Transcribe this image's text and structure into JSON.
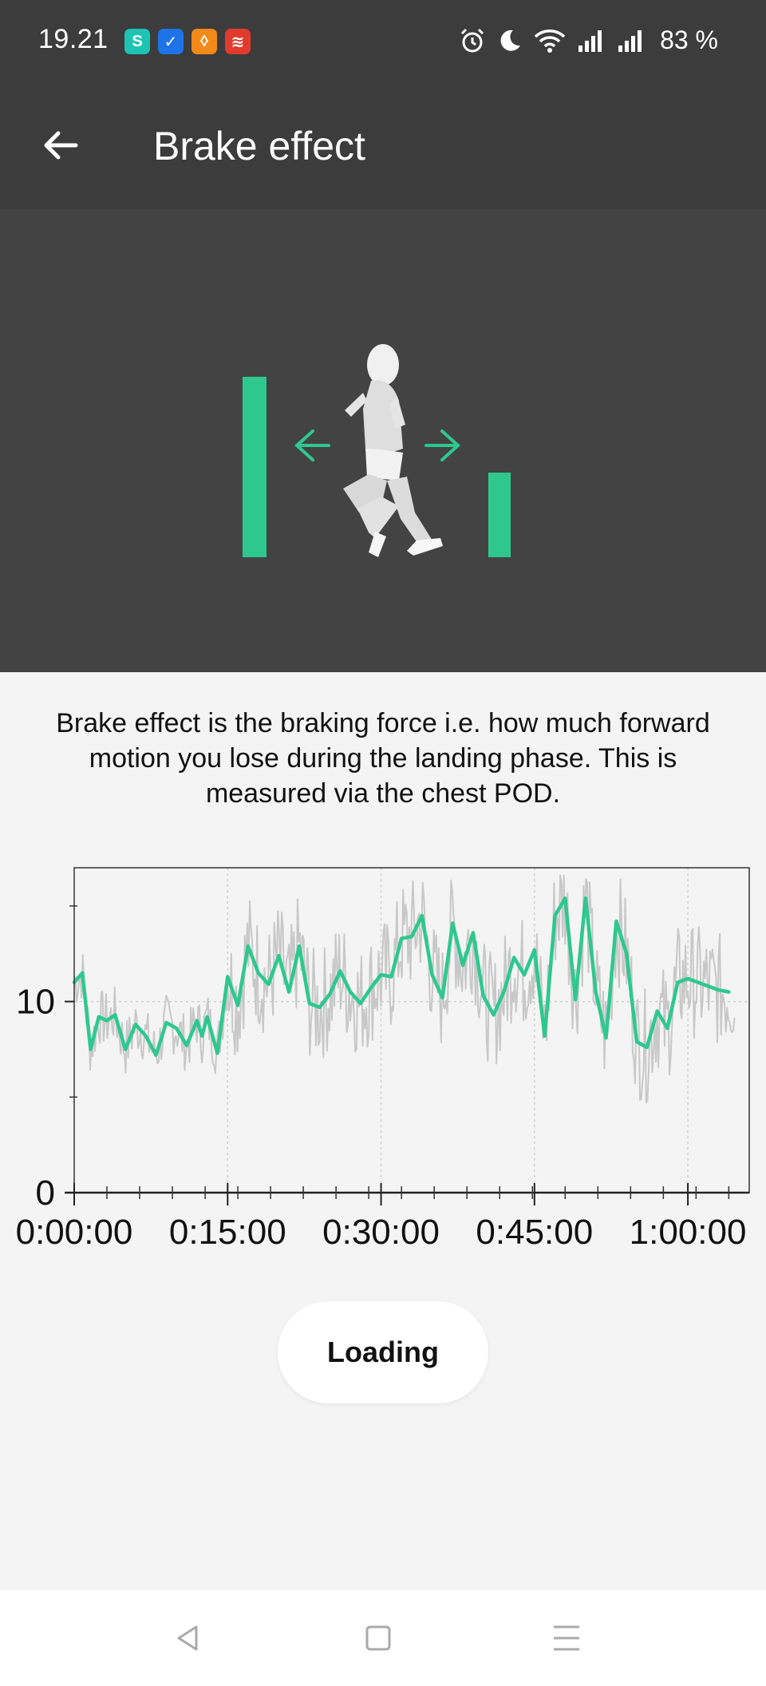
{
  "status_bar": {
    "time": "19.21",
    "battery": "83 %",
    "notification_icons": [
      "surfshark-icon",
      "tasks-icon",
      "shield-icon",
      "todoist-icon"
    ],
    "system_icons": [
      "alarm-icon",
      "moon-icon",
      "wifi-icon",
      "signal-icon",
      "signal-icon"
    ]
  },
  "app_bar": {
    "title": "Brake effect",
    "back_icon": "arrow-left-icon"
  },
  "colors": {
    "accent": "#2ec88f",
    "dark_bg": "#3c3c3c",
    "hero_bg": "#434343",
    "raw_series": "#c8c8c8"
  },
  "description": "Brake effect is the braking force i.e. how much forward motion you lose during the landing phase. This is measured via the chest POD.",
  "chart_data": {
    "type": "line",
    "x_unit": "minutes",
    "xlim": [
      0,
      66
    ],
    "ylim": [
      0,
      17
    ],
    "x_ticks": [
      {
        "value": 0,
        "label": "0:00:00"
      },
      {
        "value": 15,
        "label": "0:15:00"
      },
      {
        "value": 30,
        "label": "0:30:00"
      },
      {
        "value": 45,
        "label": "0:45:00"
      },
      {
        "value": 60,
        "label": "1:00:00"
      }
    ],
    "y_ticks": [
      {
        "value": 0,
        "label": "0"
      },
      {
        "value": 10,
        "label": "10"
      }
    ],
    "grid": true,
    "series": [
      {
        "role": "smoothed",
        "color": "#2ec88f",
        "x": [
          0.0,
          0.8,
          1.6,
          2.4,
          3.2,
          4.0,
          5.0,
          6.0,
          7.0,
          8.0,
          9.0,
          10.0,
          11.0,
          12.0,
          12.5,
          13.0,
          14.0,
          15.0,
          16.0,
          17.0,
          18.0,
          19.0,
          20.0,
          21.0,
          22.0,
          23.0,
          24.0,
          25.0,
          26.0,
          27.0,
          28.0,
          29.0,
          30.0,
          31.0,
          32.0,
          33.0,
          34.0,
          35.0,
          36.0,
          37.0,
          38.0,
          39.0,
          40.0,
          41.0,
          42.0,
          43.0,
          44.0,
          45.0,
          46.0,
          47.0,
          48.0,
          49.0,
          50.0,
          51.0,
          52.0,
          53.0,
          54.0,
          55.0,
          56.0,
          57.0,
          58.0,
          59.0,
          60.0,
          61.0,
          62.0,
          63.0,
          64.0
        ],
        "y": [
          11.0,
          11.5,
          7.5,
          9.2,
          9.0,
          9.3,
          7.5,
          8.8,
          8.2,
          7.2,
          8.9,
          8.6,
          7.7,
          9.0,
          8.2,
          9.2,
          7.3,
          11.3,
          9.8,
          12.9,
          11.5,
          10.9,
          12.4,
          10.5,
          12.9,
          9.9,
          9.7,
          10.4,
          11.6,
          10.5,
          9.9,
          10.7,
          11.4,
          11.3,
          13.3,
          13.4,
          14.5,
          11.4,
          10.2,
          14.1,
          11.9,
          13.6,
          10.3,
          9.3,
          10.5,
          12.3,
          11.4,
          12.7,
          8.2,
          14.5,
          15.4,
          10.1,
          15.4,
          10.5,
          8.1,
          14.2,
          12.5,
          7.9,
          7.6,
          9.5,
          8.6,
          11.0,
          11.2,
          11.0,
          10.8,
          10.6,
          10.5
        ]
      }
    ]
  },
  "loading_label": "Loading",
  "nav_bar": {
    "back_icon": "triangle-back-icon",
    "home_icon": "square-home-icon",
    "recents_icon": "menu-lines-icon"
  }
}
